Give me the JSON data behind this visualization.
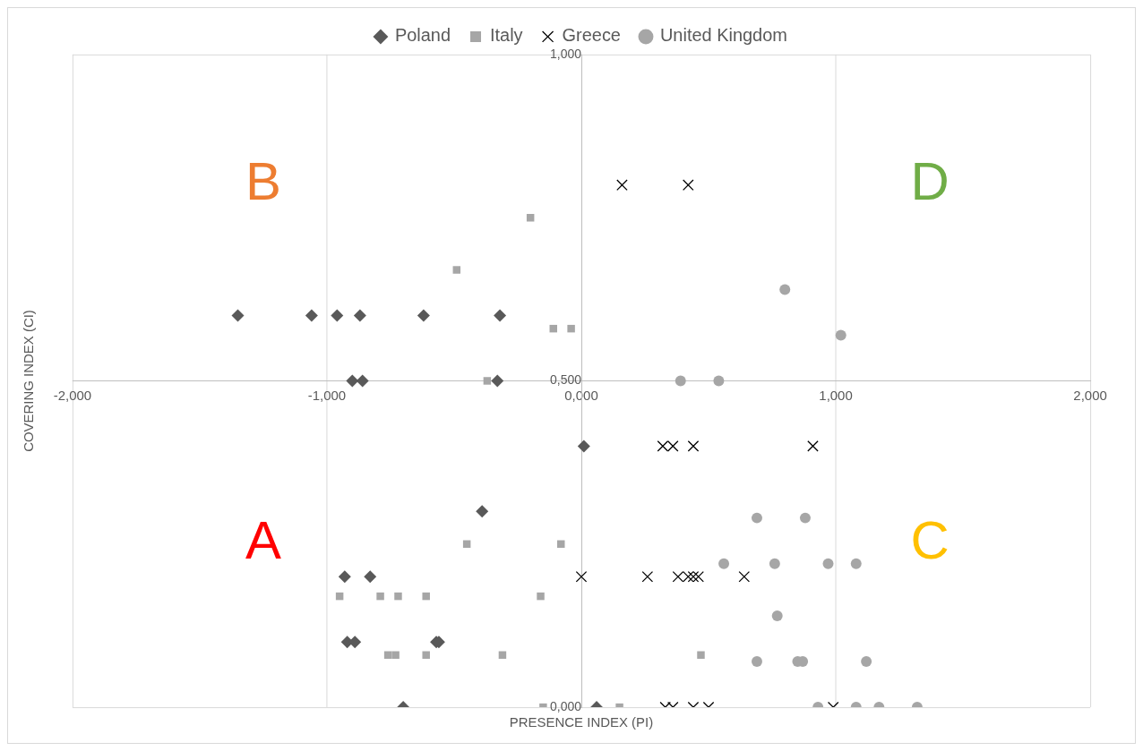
{
  "chart_data": {
    "type": "scatter",
    "xlabel": "PRESENCE INDEX (PI)",
    "ylabel": "COVERING INDEX (CI)",
    "xlim": [
      -2,
      2
    ],
    "xticks": [
      {
        "value": -2,
        "label": "-2,000"
      },
      {
        "value": -1,
        "label": "-1,000"
      },
      {
        "value": 0,
        "label": "0,000"
      },
      {
        "value": 1,
        "label": "1,000"
      },
      {
        "value": 2,
        "label": "2,000"
      }
    ],
    "ylim": [
      0,
      1
    ],
    "yticks": [
      {
        "value": 0,
        "label": "0,000"
      },
      {
        "value": 0.5,
        "label": "0,500"
      },
      {
        "value": 1,
        "label": "1,000"
      }
    ],
    "grid": true,
    "legend": "top",
    "annotations": [
      "A",
      "B",
      "C",
      "D"
    ],
    "series": [
      {
        "name": "Poland",
        "color": "#595959",
        "marker": "diamond",
        "x": [
          -1.35,
          -1.06,
          -0.96,
          -0.87,
          -0.62,
          -0.32,
          -0.9,
          -0.86,
          -0.33,
          0.01,
          -0.39,
          -0.93,
          -0.83,
          -0.92,
          -0.89,
          -0.57,
          -0.56,
          -0.7,
          0.06
        ],
        "values": [
          0.6,
          0.6,
          0.6,
          0.6,
          0.6,
          0.6,
          0.5,
          0.5,
          0.5,
          0.4,
          0.3,
          0.2,
          0.2,
          0.1,
          0.1,
          0.1,
          0.1,
          0,
          0
        ]
      },
      {
        "name": "Italy",
        "color": "#a6a6a6",
        "marker": "square",
        "x": [
          -0.2,
          -0.49,
          -0.11,
          -0.04,
          -0.37,
          -0.45,
          -0.08,
          -0.95,
          -0.79,
          -0.72,
          -0.61,
          -0.16,
          -0.76,
          -0.73,
          -0.61,
          -0.31,
          0.47,
          -0.15,
          0.15
        ],
        "values": [
          0.75,
          0.67,
          0.58,
          0.58,
          0.5,
          0.25,
          0.25,
          0.17,
          0.17,
          0.17,
          0.17,
          0.17,
          0.08,
          0.08,
          0.08,
          0.08,
          0.08,
          0,
          0
        ]
      },
      {
        "name": "Greece",
        "color": "#000000",
        "marker": "cross",
        "x": [
          0.16,
          0.42,
          0.32,
          0.36,
          0.44,
          0.91,
          0,
          0.26,
          0.38,
          0.42,
          0.44,
          0.46,
          0.64,
          0.33,
          0.36,
          0.44,
          0.5,
          0.99
        ],
        "values": [
          0.8,
          0.8,
          0.4,
          0.4,
          0.4,
          0.4,
          0.2,
          0.2,
          0.2,
          0.2,
          0.2,
          0.2,
          0.2,
          0,
          0,
          0,
          0,
          0
        ]
      },
      {
        "name": "United Kingdom",
        "color": "#a6a6a6",
        "marker": "circle",
        "x": [
          0.8,
          1.02,
          0.39,
          0.54,
          0.69,
          0.88,
          0.56,
          0.76,
          0.97,
          1.08,
          0.77,
          0.69,
          0.85,
          0.87,
          1.12,
          0.93,
          1.08,
          1.17,
          1.32
        ],
        "values": [
          0.64,
          0.57,
          0.5,
          0.5,
          0.29,
          0.29,
          0.22,
          0.22,
          0.22,
          0.22,
          0.14,
          0.07,
          0.07,
          0.07,
          0.07,
          0,
          0,
          0,
          0
        ]
      }
    ]
  }
}
